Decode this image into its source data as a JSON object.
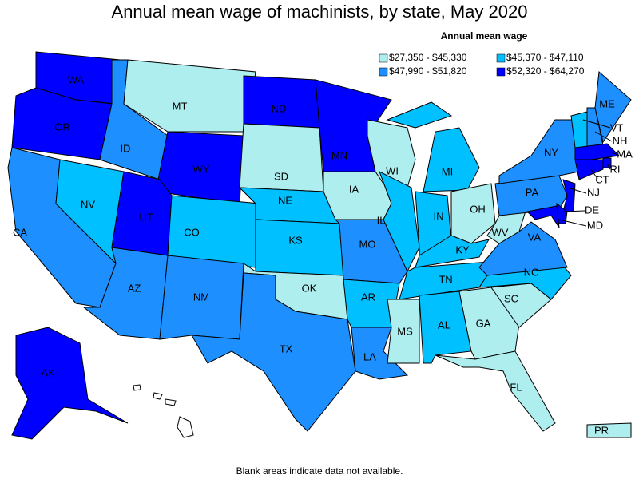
{
  "title": "Annual mean wage of machinists, by state, May 2020",
  "legend": {
    "title": "Annual mean wage",
    "items": [
      {
        "label": "$27,350 - $45,330",
        "color": "#aeeeee"
      },
      {
        "label": "$45,370 - $47,110",
        "color": "#00c0ff"
      },
      {
        "label": "$47,990 - $51,820",
        "color": "#1e8fff"
      },
      {
        "label": "$52,320 - $64,270",
        "color": "#0000ff"
      }
    ]
  },
  "states": [
    {
      "label": "WA",
      "class": 3
    },
    {
      "label": "OR",
      "class": 3
    },
    {
      "label": "CA",
      "class": 2
    },
    {
      "label": "NV",
      "class": 1
    },
    {
      "label": "ID",
      "class": 2
    },
    {
      "label": "MT",
      "class": 0
    },
    {
      "label": "WY",
      "class": 3
    },
    {
      "label": "UT",
      "class": 3
    },
    {
      "label": "AZ",
      "class": 2
    },
    {
      "label": "CO",
      "class": 1
    },
    {
      "label": "NM",
      "class": 2
    },
    {
      "label": "ND",
      "class": 3
    },
    {
      "label": "SD",
      "class": 0
    },
    {
      "label": "NE",
      "class": 1
    },
    {
      "label": "KS",
      "class": 1
    },
    {
      "label": "OK",
      "class": 0
    },
    {
      "label": "TX",
      "class": 2
    },
    {
      "label": "MN",
      "class": 3
    },
    {
      "label": "IA",
      "class": 0
    },
    {
      "label": "MO",
      "class": 2
    },
    {
      "label": "AR",
      "class": 1
    },
    {
      "label": "LA",
      "class": 2
    },
    {
      "label": "WI",
      "class": 0
    },
    {
      "label": "IL",
      "class": 1
    },
    {
      "label": "IN",
      "class": 1
    },
    {
      "label": "MI",
      "class": 1
    },
    {
      "label": "OH",
      "class": 0
    },
    {
      "label": "KY",
      "class": 1
    },
    {
      "label": "TN",
      "class": 1
    },
    {
      "label": "MS",
      "class": 0
    },
    {
      "label": "AL",
      "class": 1
    },
    {
      "label": "GA",
      "class": 0
    },
    {
      "label": "SC",
      "class": 0
    },
    {
      "label": "NC",
      "class": 1
    },
    {
      "label": "FL",
      "class": 0
    },
    {
      "label": "VA",
      "class": 2
    },
    {
      "label": "WV",
      "class": 0
    },
    {
      "label": "PA",
      "class": 2
    },
    {
      "label": "NY",
      "class": 2
    },
    {
      "label": "VT",
      "class": 1
    },
    {
      "label": "NH",
      "class": 2
    },
    {
      "label": "ME",
      "class": 2
    },
    {
      "label": "MA",
      "class": 3
    },
    {
      "label": "RI",
      "class": 3
    },
    {
      "label": "CT",
      "class": 3
    },
    {
      "label": "NJ",
      "class": 3
    },
    {
      "label": "DE",
      "class": 3
    },
    {
      "label": "MD",
      "class": 3
    },
    {
      "label": "AK",
      "class": 3
    },
    {
      "label": "PR",
      "class": 0
    }
  ],
  "note": "Blank areas indicate data not available."
}
